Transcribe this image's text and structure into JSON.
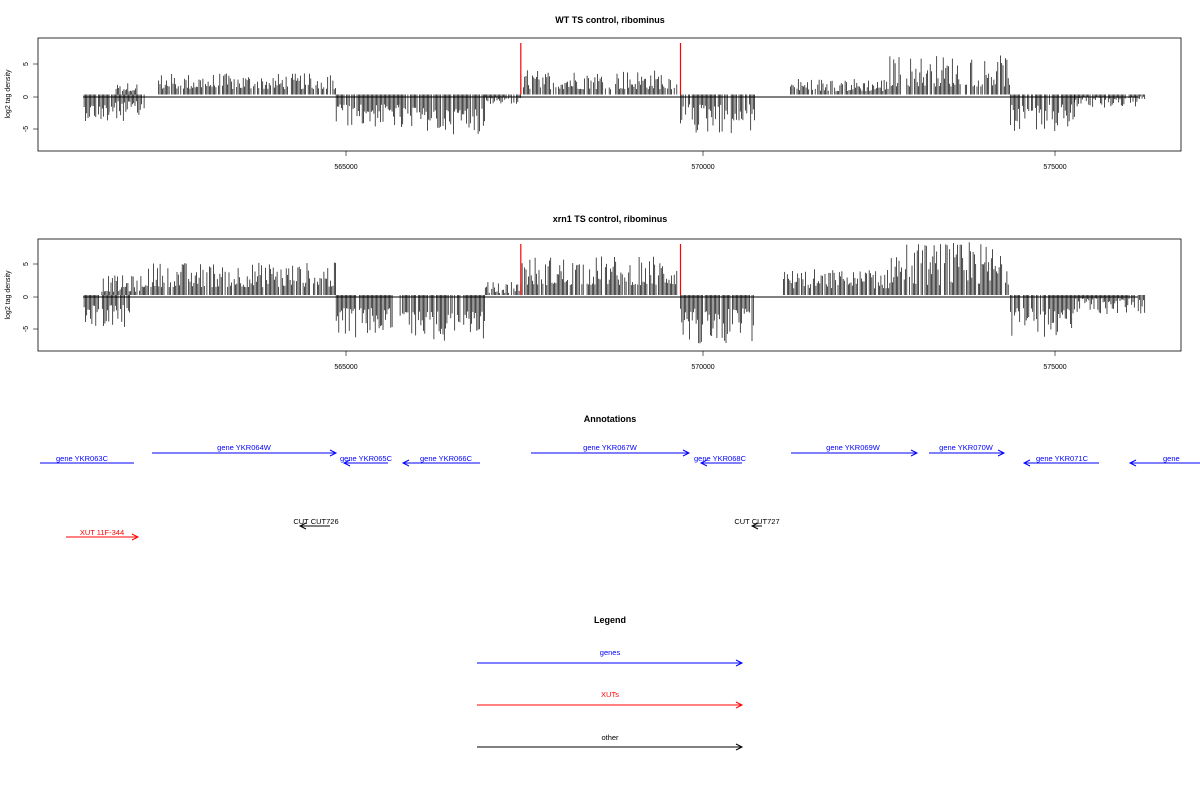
{
  "tracks": [
    {
      "title": "WT TS control, ribominus",
      "ylabel": "log2 tag density",
      "yticks": [
        "-5",
        "0",
        "5"
      ]
    },
    {
      "title": "xrn1 TS control, ribominus",
      "ylabel": "log2 tag density",
      "yticks": [
        "-5",
        "0",
        "5"
      ]
    }
  ],
  "xticks": [
    "565000",
    "570000",
    "575000"
  ],
  "annotations_title": "Annotations",
  "annotations": [
    {
      "label": "gene YKR063C",
      "strand": "-",
      "color": "#0000ff",
      "row": 0
    },
    {
      "label": "gene YKR064W",
      "strand": "+",
      "color": "#0000ff",
      "row": 0
    },
    {
      "label": "gene YKR065C",
      "strand": "-",
      "color": "#0000ff",
      "row": 0
    },
    {
      "label": "gene YKR066C",
      "strand": "-",
      "color": "#0000ff",
      "row": 0
    },
    {
      "label": "gene YKR067W",
      "strand": "+",
      "color": "#0000ff",
      "row": 0
    },
    {
      "label": "gene YKR068C",
      "strand": "-",
      "color": "#0000ff",
      "row": 0
    },
    {
      "label": "gene YKR069W",
      "strand": "+",
      "color": "#0000ff",
      "row": 0
    },
    {
      "label": "gene YKR070W",
      "strand": "+",
      "color": "#0000ff",
      "row": 0
    },
    {
      "label": "gene YKR071C",
      "strand": "-",
      "color": "#0000ff",
      "row": 0
    },
    {
      "label": "gene",
      "strand": "-",
      "color": "#0000ff",
      "row": 0
    },
    {
      "label": "CUT CUT726",
      "strand": "-",
      "color": "#000000",
      "row": 1
    },
    {
      "label": "CUT CUT727",
      "strand": "-",
      "color": "#000000",
      "row": 1
    },
    {
      "label": "XUT 11F-344",
      "strand": "+",
      "color": "#ff0000",
      "row": 2
    }
  ],
  "legend_title": "Legend",
  "legend": [
    {
      "label": "genes",
      "color": "#0000ff"
    },
    {
      "label": "XUTs",
      "color": "#ff0000"
    },
    {
      "label": "other",
      "color": "#000000"
    }
  ],
  "chart_data": [
    {
      "type": "bar",
      "title": "WT TS control, ribominus",
      "ylabel": "log2 tag density",
      "ylim": [
        -8.5,
        8.5
      ],
      "xlim": [
        560600,
        576700
      ],
      "highlight_markers_x": [
        567400,
        569650
      ],
      "marker_color": "#ff0000",
      "signal_segments": [
        {
          "start": 561250,
          "end": 561600,
          "strand": "-",
          "min": 1.5,
          "max": 4
        },
        {
          "start": 561700,
          "end": 562000,
          "strand": "+",
          "min": 0.5,
          "max": 1.8
        },
        {
          "start": 561600,
          "end": 562100,
          "strand": "-",
          "min": 1,
          "max": 4
        },
        {
          "start": 562300,
          "end": 564800,
          "strand": "+",
          "min": 0.8,
          "max": 3.2
        },
        {
          "start": 564800,
          "end": 565700,
          "strand": "-",
          "min": 1.5,
          "max": 5
        },
        {
          "start": 565700,
          "end": 566900,
          "strand": "-",
          "min": 2,
          "max": 6
        },
        {
          "start": 566900,
          "end": 567400,
          "strand": "-",
          "min": 0.3,
          "max": 1.5
        },
        {
          "start": 567400,
          "end": 569600,
          "strand": "+",
          "min": 0.8,
          "max": 3.8
        },
        {
          "start": 569650,
          "end": 570700,
          "strand": "-",
          "min": 1.5,
          "max": 6
        },
        {
          "start": 571200,
          "end": 572600,
          "strand": "+",
          "min": 0.5,
          "max": 2.5
        },
        {
          "start": 572600,
          "end": 574300,
          "strand": "+",
          "min": 1.2,
          "max": 6
        },
        {
          "start": 574300,
          "end": 575200,
          "strand": "-",
          "min": 1.5,
          "max": 5.5
        },
        {
          "start": 575200,
          "end": 576200,
          "strand": "-",
          "min": 0.3,
          "max": 2
        }
      ]
    },
    {
      "type": "bar",
      "title": "xrn1 TS control, ribominus",
      "ylabel": "log2 tag density",
      "ylim": [
        -8.5,
        8.5
      ],
      "xlim": [
        560600,
        576700
      ],
      "highlight_markers_x": [
        567400,
        569650
      ],
      "marker_color": "#ff0000",
      "signal_segments": [
        {
          "start": 561250,
          "end": 561900,
          "strand": "-",
          "min": 1.5,
          "max": 5.5
        },
        {
          "start": 561500,
          "end": 562100,
          "strand": "+",
          "min": 0.5,
          "max": 3
        },
        {
          "start": 562100,
          "end": 564800,
          "strand": "+",
          "min": 1.2,
          "max": 5
        },
        {
          "start": 564800,
          "end": 565600,
          "strand": "-",
          "min": 2,
          "max": 6.5
        },
        {
          "start": 565700,
          "end": 566900,
          "strand": "-",
          "min": 2.5,
          "max": 7
        },
        {
          "start": 566900,
          "end": 567400,
          "strand": "+",
          "min": 0.3,
          "max": 2
        },
        {
          "start": 567400,
          "end": 569600,
          "strand": "+",
          "min": 1.5,
          "max": 6
        },
        {
          "start": 569650,
          "end": 570700,
          "strand": "-",
          "min": 2,
          "max": 7.5
        },
        {
          "start": 571100,
          "end": 572600,
          "strand": "+",
          "min": 1,
          "max": 4
        },
        {
          "start": 572600,
          "end": 574300,
          "strand": "+",
          "min": 1.5,
          "max": 8
        },
        {
          "start": 574300,
          "end": 575200,
          "strand": "-",
          "min": 2,
          "max": 6.5
        },
        {
          "start": 575200,
          "end": 576200,
          "strand": "-",
          "min": 0.5,
          "max": 3
        }
      ]
    }
  ]
}
